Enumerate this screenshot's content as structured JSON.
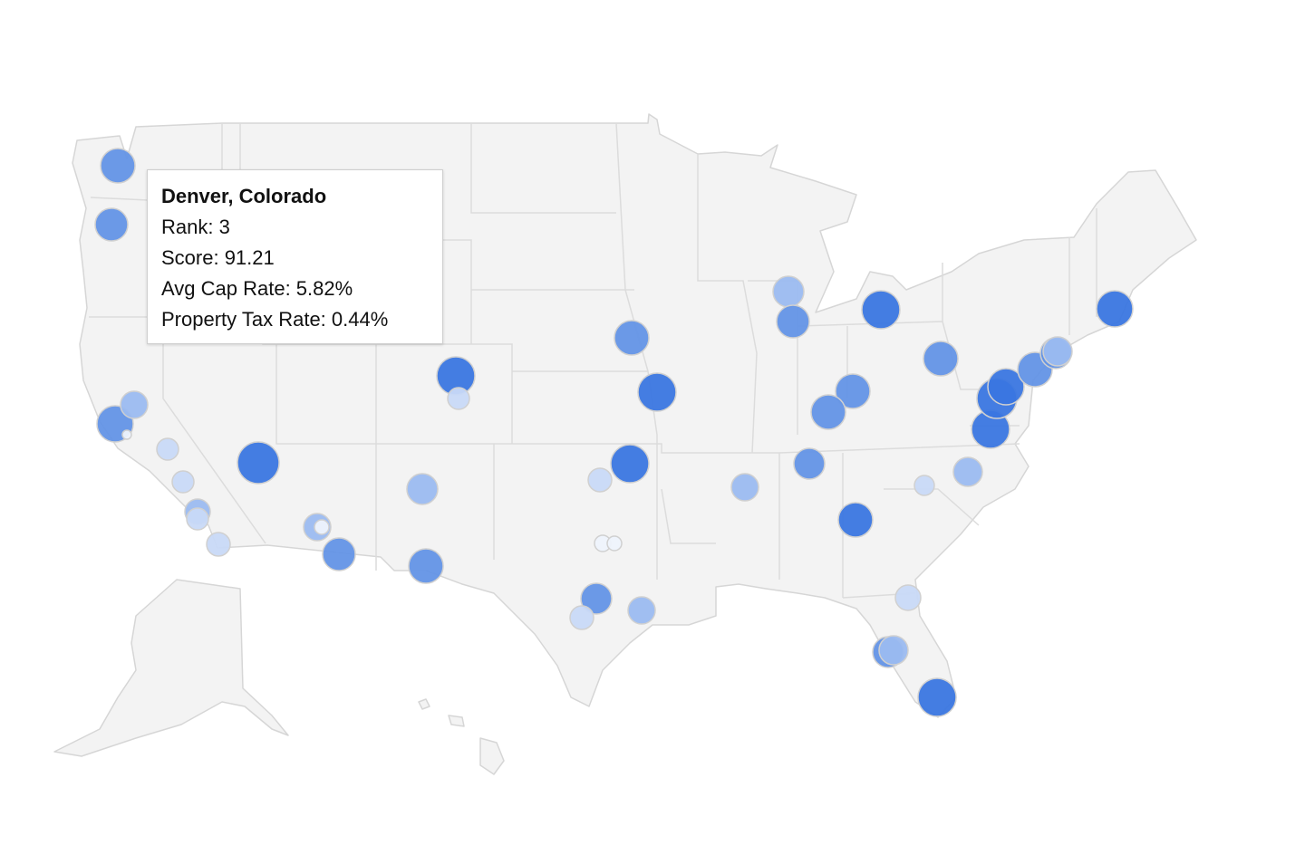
{
  "tooltip": {
    "title": "Denver, Colorado",
    "rows": [
      "Rank: 3",
      "Score: 91.21",
      "Avg Cap Rate: 5.82%",
      "Property Tax Rate: 0.44%"
    ]
  }
}
